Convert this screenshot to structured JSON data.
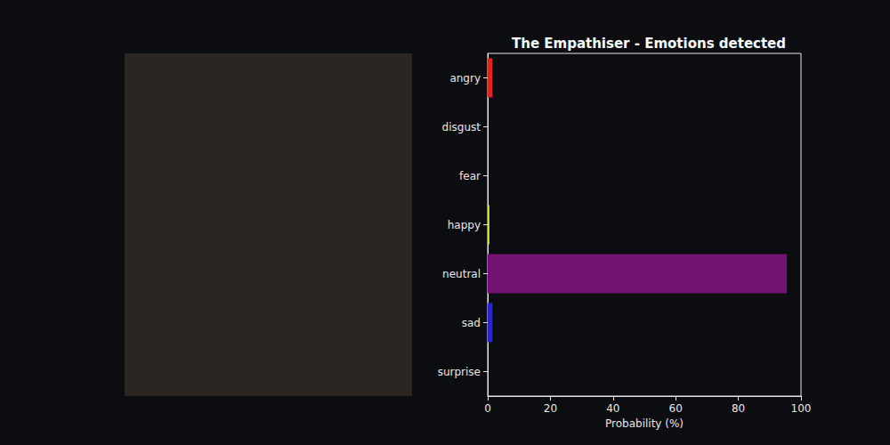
{
  "chart_data": {
    "type": "bar",
    "orientation": "horizontal",
    "title": "The Empathiser - Emotions detected",
    "x_label": "Probability (%)",
    "categories": [
      "angry",
      "disgust",
      "fear",
      "happy",
      "neutral",
      "sad",
      "surprise"
    ],
    "values": [
      1.5,
      0,
      0,
      0.5,
      95.5,
      1.5,
      0
    ],
    "colors": [
      "#e02424",
      "#3a9a3a",
      "#e08a1e",
      "#f2e85a",
      "#731372",
      "#2828c8",
      "#1ea0c8"
    ],
    "xlim": [
      0,
      100
    ],
    "xticks": [
      0,
      20,
      40,
      60,
      80,
      100
    ],
    "grid": false
  }
}
